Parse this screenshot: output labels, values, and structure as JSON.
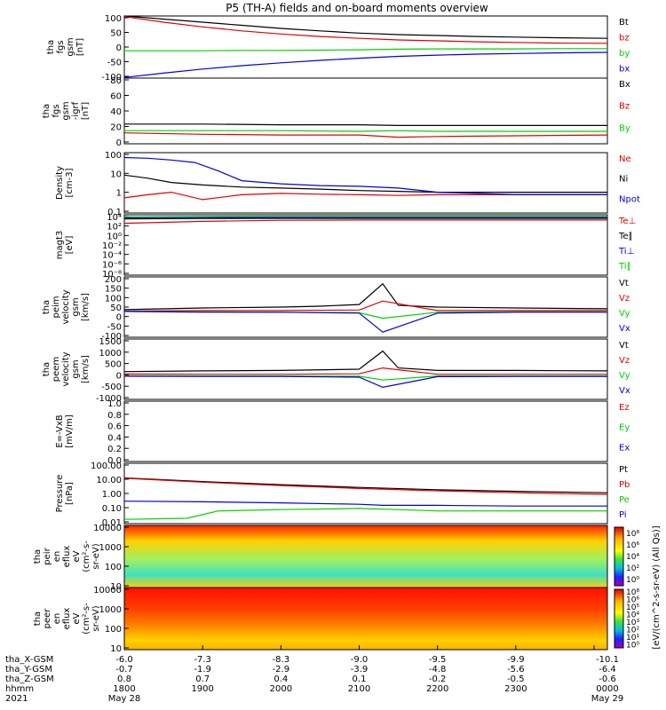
{
  "title": "P5 (TH-A) fields and on-board moments overview",
  "colors": {
    "black": "#000000",
    "red": "#e00000",
    "green": "#00d000",
    "blue": "#0000e0"
  },
  "chart_data": [
    {
      "type": "line",
      "panel": "fgs_gsm",
      "ylabel": [
        "tha",
        "fgs",
        "gsm",
        "[nT]"
      ],
      "ylim": [
        -100,
        100
      ],
      "yticks": [
        "100",
        "50",
        "0",
        "-50",
        "-100"
      ],
      "series": [
        {
          "name": "Bt",
          "color": "black",
          "x": [
            18.0,
            18.5,
            19.0,
            19.5,
            20.0,
            20.5,
            21.0,
            21.5,
            22.0,
            22.5,
            23.0,
            23.5,
            24.17
          ],
          "values": [
            100,
            90,
            80,
            70,
            60,
            52,
            45,
            40,
            37,
            34,
            32,
            30,
            28
          ]
        },
        {
          "name": "bz",
          "color": "red",
          "x": [
            18.0,
            18.5,
            19.0,
            19.5,
            20.0,
            20.5,
            21.0,
            21.5,
            22.0,
            22.5,
            23.0,
            23.5,
            24.17
          ],
          "values": [
            98,
            80,
            65,
            52,
            42,
            34,
            28,
            23,
            20,
            17,
            15,
            13,
            12
          ]
        },
        {
          "name": "by",
          "color": "green",
          "x": [
            18.0,
            18.5,
            19.0,
            19.5,
            20.0,
            20.5,
            21.0,
            21.5,
            22.0,
            22.5,
            23.0,
            23.5,
            24.17
          ],
          "values": [
            -12,
            -12,
            -12,
            -11,
            -11,
            -10,
            -9,
            -7,
            -6,
            -6,
            -6,
            -5,
            -5
          ]
        },
        {
          "name": "bx",
          "color": "blue",
          "x": [
            18.0,
            18.5,
            19.0,
            19.5,
            20.0,
            20.5,
            21.0,
            21.5,
            22.0,
            22.5,
            23.0,
            23.5,
            24.17
          ],
          "values": [
            -98,
            -84,
            -71,
            -60,
            -51,
            -43,
            -36,
            -30,
            -26,
            -23,
            -21,
            -19,
            -17
          ]
        }
      ]
    },
    {
      "type": "line",
      "panel": "fgs_gsm_igrf",
      "ylabel": [
        "tha",
        "fgs",
        "gsm",
        "-igrf",
        "[nT]"
      ],
      "ylim": [
        -10,
        80
      ],
      "yticks": [
        "80",
        "60",
        "40",
        "20",
        "0"
      ],
      "series": [
        {
          "name": "Bx",
          "color": "black",
          "x": [
            18.0,
            19.0,
            20.0,
            21.0,
            21.5,
            22.0,
            23.0,
            24.17
          ],
          "values": [
            17,
            17,
            16,
            16,
            15,
            15,
            15,
            15
          ]
        },
        {
          "name": "Bz",
          "color": "red",
          "x": [
            18.0,
            19.0,
            20.0,
            21.0,
            21.5,
            22.0,
            23.0,
            24.17
          ],
          "values": [
            5,
            3,
            2,
            2,
            -1,
            0,
            1,
            2
          ]
        },
        {
          "name": "By",
          "color": "green",
          "x": [
            18.0,
            19.0,
            20.0,
            21.0,
            21.5,
            22.0,
            23.0,
            24.17
          ],
          "values": [
            8,
            8,
            8,
            7,
            8,
            7,
            7,
            7
          ]
        }
      ],
      "extra_labels": [
        "Bx",
        "Bz"
      ]
    },
    {
      "type": "line",
      "panel": "density",
      "ylabel": [
        "Density",
        "[cm-3]"
      ],
      "scale": "log",
      "ylim": [
        0.01,
        200
      ],
      "yticks": [
        "100",
        "10",
        "1",
        "0.1"
      ],
      "series": [
        {
          "name": "Ne",
          "color": "red",
          "x": [
            18.0,
            18.3,
            18.6,
            19.0,
            19.5,
            20.0,
            20.5,
            21.0,
            21.5,
            22.0,
            23.0,
            24.17
          ],
          "values": [
            0.12,
            0.2,
            0.3,
            0.09,
            0.2,
            0.25,
            0.22,
            0.2,
            0.18,
            0.2,
            0.2,
            0.2
          ]
        },
        {
          "name": "Ni",
          "color": "black",
          "x": [
            18.0,
            18.3,
            18.6,
            19.0,
            19.5,
            20.0,
            20.5,
            21.0,
            21.5,
            22.0,
            23.0,
            24.17
          ],
          "values": [
            5,
            3,
            1.5,
            1.0,
            0.7,
            0.6,
            0.5,
            0.4,
            0.35,
            0.3,
            0.3,
            0.3
          ]
        },
        {
          "name": "Npot",
          "color": "blue",
          "x": [
            18.0,
            18.3,
            18.6,
            18.9,
            19.2,
            19.5,
            20.0,
            20.5,
            21.0,
            21.5,
            22.0,
            23.0,
            24.17
          ],
          "values": [
            90,
            80,
            60,
            40,
            10,
            2,
            1.2,
            0.9,
            0.8,
            0.6,
            0.3,
            0.2,
            0.2
          ]
        }
      ]
    },
    {
      "type": "line",
      "panel": "magt3",
      "ylabel": [
        "magt3",
        "[eV]"
      ],
      "scale": "log",
      "ylim": [
        1e-08,
        10000.0
      ],
      "yticks": [
        "10⁴",
        "10²",
        "10⁰",
        "10⁻²",
        "10⁻⁴",
        "10⁻⁶",
        "10⁻⁸"
      ],
      "series": [
        {
          "name": "Te⊥",
          "color": "red",
          "x": [
            18.0,
            19.0,
            20.0,
            21.0,
            22.0,
            23.0,
            24.17
          ],
          "values": [
            200,
            500,
            800,
            900,
            900,
            900,
            900
          ]
        },
        {
          "name": "Te∥",
          "color": "black",
          "x": [
            18.0,
            19.0,
            20.0,
            21.0,
            22.0,
            23.0,
            24.17
          ],
          "values": [
            1500,
            1800,
            2000,
            2000,
            2000,
            2000,
            2000
          ]
        },
        {
          "name": "Ti⊥",
          "color": "blue",
          "x": [
            18.0,
            19.0,
            20.0,
            21.0,
            22.0,
            23.0,
            24.17
          ],
          "values": [
            2500,
            3000,
            3000,
            3000,
            3000,
            3000,
            3000
          ]
        },
        {
          "name": "Ti∥",
          "color": "green",
          "x": [
            18.0,
            19.0,
            20.0,
            21.0,
            22.0,
            23.0,
            24.17
          ],
          "values": [
            4000,
            4500,
            5000,
            5000,
            5000,
            5000,
            5000
          ]
        }
      ]
    },
    {
      "type": "line",
      "panel": "peim_velocity",
      "ylabel": [
        "tha",
        "peim",
        "velocity",
        "gsm",
        "[km/s]"
      ],
      "ylim": [
        -150,
        200
      ],
      "yticks": [
        "200",
        "150",
        "100",
        "50",
        "0",
        "-50",
        "-100"
      ],
      "series": [
        {
          "name": "Vt",
          "color": "black",
          "x": [
            18.0,
            19.0,
            20.0,
            20.5,
            21.0,
            21.3,
            21.5,
            22.0,
            23.0,
            24.17
          ],
          "values": [
            10,
            20,
            25,
            30,
            40,
            160,
            35,
            25,
            20,
            15
          ]
        },
        {
          "name": "Vz",
          "color": "red",
          "x": [
            18.0,
            19.0,
            20.0,
            21.0,
            21.3,
            22.0,
            23.0,
            24.17
          ],
          "values": [
            2,
            5,
            5,
            8,
            60,
            5,
            5,
            5
          ]
        },
        {
          "name": "Vy",
          "color": "green",
          "x": [
            18.0,
            19.0,
            20.0,
            21.0,
            21.3,
            22.0,
            23.0,
            24.17
          ],
          "values": [
            0,
            -3,
            -5,
            -8,
            -40,
            -5,
            -3,
            -3
          ]
        },
        {
          "name": "Vx",
          "color": "blue",
          "x": [
            18.0,
            19.0,
            20.0,
            21.0,
            21.3,
            22.0,
            23.0,
            24.17
          ],
          "values": [
            0,
            -5,
            -5,
            -10,
            -120,
            -10,
            -5,
            -5
          ]
        }
      ]
    },
    {
      "type": "line",
      "panel": "peem_velocity",
      "ylabel": [
        "tha",
        "peem",
        "velocity",
        "gsm",
        "[km/s]"
      ],
      "ylim": [
        -1000,
        1500
      ],
      "yticks": [
        "1500",
        "1000",
        "500",
        "0",
        "-500",
        "-1000"
      ],
      "series": [
        {
          "name": "Vt",
          "color": "black",
          "x": [
            18.0,
            19.0,
            20.0,
            21.0,
            21.3,
            21.5,
            22.0,
            23.0,
            24.17
          ],
          "values": [
            150,
            180,
            200,
            250,
            1000,
            300,
            200,
            200,
            180
          ]
        },
        {
          "name": "Vz",
          "color": "red",
          "x": [
            18.0,
            19.0,
            20.0,
            21.0,
            21.3,
            22.0,
            23.0,
            24.17
          ],
          "values": [
            50,
            40,
            40,
            60,
            300,
            40,
            40,
            40
          ]
        },
        {
          "name": "Vy",
          "color": "green",
          "x": [
            18.0,
            19.0,
            20.0,
            21.0,
            21.3,
            22.0,
            23.0,
            24.17
          ],
          "values": [
            -20,
            -30,
            -30,
            -40,
            -200,
            -30,
            -30,
            -30
          ]
        },
        {
          "name": "Vx",
          "color": "blue",
          "x": [
            18.0,
            19.0,
            20.0,
            21.0,
            21.3,
            22.0,
            23.0,
            24.17
          ],
          "values": [
            -40,
            -50,
            -50,
            -80,
            -500,
            -60,
            -50,
            -50
          ]
        }
      ]
    },
    {
      "type": "line",
      "panel": "E_field",
      "ylabel": [
        "E=-VxB",
        "[mV/m]"
      ],
      "ylim": [
        0,
        1
      ],
      "yticks": [
        "1.0",
        "0.8",
        "0.6",
        "0.4",
        "0.2",
        "0.0"
      ],
      "series": [
        {
          "name": "Ez",
          "color": "red",
          "x": [],
          "values": []
        },
        {
          "name": "Ey",
          "color": "green",
          "x": [],
          "values": []
        },
        {
          "name": "Ex",
          "color": "blue",
          "x": [],
          "values": []
        }
      ]
    },
    {
      "type": "line",
      "panel": "pressure",
      "ylabel": [
        "Pressure",
        "[nPa]"
      ],
      "scale": "log",
      "ylim": [
        0.005,
        100
      ],
      "yticks": [
        "100.00",
        "10.00",
        "1.00",
        "0.10",
        "0.01"
      ],
      "series": [
        {
          "name": "Pt",
          "color": "black",
          "x": [
            18.0,
            19.0,
            20.0,
            21.0,
            22.0,
            23.0,
            24.17
          ],
          "values": [
            9,
            5,
            3,
            1.9,
            1.3,
            1.0,
            0.8
          ]
        },
        {
          "name": "Pb",
          "color": "red",
          "x": [
            18.0,
            19.0,
            20.0,
            21.0,
            22.0,
            23.0,
            24.17
          ],
          "values": [
            8.5,
            4.5,
            2.6,
            1.6,
            1.1,
            0.8,
            0.6
          ]
        },
        {
          "name": "Pe",
          "color": "green",
          "x": [
            18.0,
            18.8,
            19.2,
            20.0,
            21.0,
            21.5,
            22.0,
            23.0,
            24.17
          ],
          "values": [
            0.01,
            0.012,
            0.04,
            0.05,
            0.06,
            0.05,
            0.04,
            0.04,
            0.04
          ]
        },
        {
          "name": "Pi",
          "color": "blue",
          "x": [
            18.0,
            19.0,
            20.0,
            21.0,
            21.3,
            22.0,
            23.0,
            24.17
          ],
          "values": [
            0.2,
            0.18,
            0.15,
            0.12,
            0.1,
            0.1,
            0.09,
            0.09
          ]
        }
      ]
    },
    {
      "type": "heatmap",
      "panel": "peir_en_eflux",
      "ylabel": [
        "tha",
        "peir",
        "en",
        "eflux",
        "eV",
        "(cm²-s-",
        "sr-eV)"
      ],
      "scale": "log",
      "ylim": [
        5,
        20000
      ],
      "yticks": [
        "10000",
        "1000",
        "100",
        "10"
      ]
    },
    {
      "type": "heatmap",
      "panel": "peer_en_eflux",
      "ylabel": [
        "tha",
        "peer",
        "en",
        "eflux",
        "eV",
        "(cm²-s-",
        "sr-eV)"
      ],
      "scale": "log",
      "ylim": [
        5,
        20000
      ],
      "yticks": [
        "10000",
        "1000",
        "100",
        "10"
      ]
    }
  ],
  "colorbar": {
    "label": "[eV/(cm^2-s-sr-eV) (All Qs)]",
    "upper_ticks": [
      "10⁸",
      "10⁶",
      "10⁴",
      "10²",
      "10⁰"
    ],
    "lower_ticks": [
      "10⁸",
      "10⁶",
      "10⁵",
      "10⁴",
      "10³",
      "10²",
      "10¹",
      "10⁰"
    ]
  },
  "x_axis": {
    "xlim": [
      18.0,
      24.17
    ],
    "rows": [
      {
        "label": "tha_X-GSM",
        "values": [
          "-6.0",
          "-7.3",
          "-8.3",
          "-9.0",
          "-9.5",
          "-9.9",
          "-10.1"
        ]
      },
      {
        "label": "tha_Y-GSM",
        "values": [
          "-0.7",
          "-1.9",
          "-2.9",
          "-3.9",
          "-4.8",
          "-5.6",
          "-6.4"
        ]
      },
      {
        "label": "tha_Z-GSM",
        "values": [
          "0.8",
          "0.7",
          "0.4",
          "0.1",
          "-0.2",
          "-0.5",
          "-0.6"
        ]
      },
      {
        "label": "hhmm",
        "values": [
          "1800",
          "1900",
          "2000",
          "2100",
          "2200",
          "2300",
          "0000"
        ]
      },
      {
        "label": "2021",
        "values": [
          "May 28",
          "",
          "",
          "",
          "",
          "",
          "May 29"
        ]
      }
    ]
  }
}
